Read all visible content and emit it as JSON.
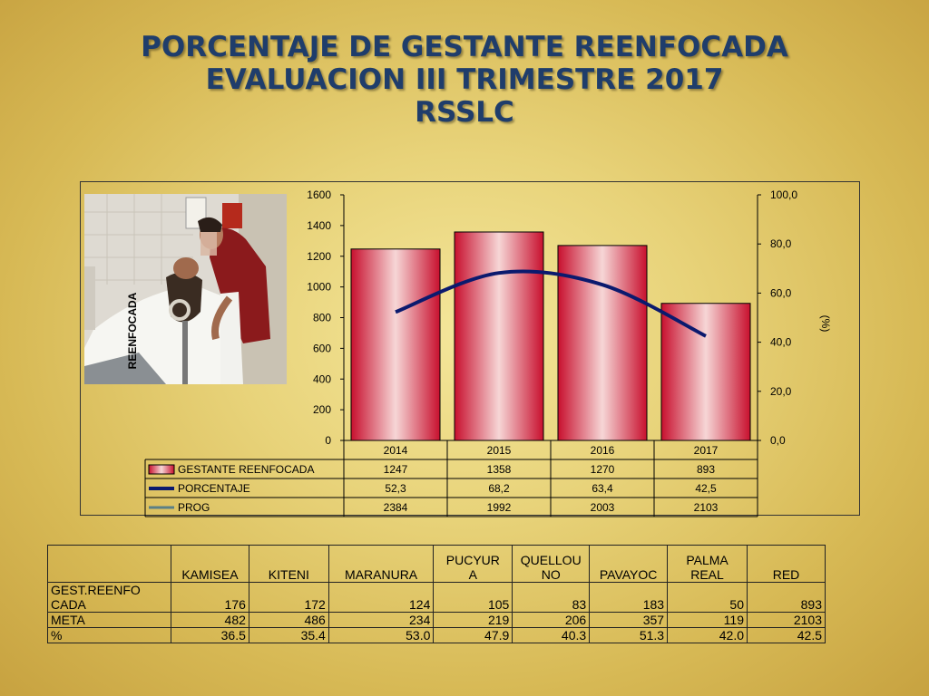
{
  "slide": {
    "title_lines": [
      "PORCENTAJE DE GESTANTE REENFOCADA",
      "EVALUACION  III TRIMESTRE 2017",
      "RSSLC"
    ]
  },
  "chart_data": {
    "type": "bar",
    "categories": [
      "2014",
      "2015",
      "2016",
      "2017"
    ],
    "series": [
      {
        "name": "GESTANTE REENFOCADA",
        "type": "bar",
        "axis": "left",
        "values": [
          1247,
          1358,
          1270,
          893
        ],
        "labels": [
          "1247",
          "1358",
          "1270",
          "893"
        ]
      },
      {
        "name": "PORCENTAJE",
        "type": "line",
        "axis": "right",
        "values": [
          52.3,
          68.2,
          63.4,
          42.5
        ],
        "labels": [
          "52,3",
          "68,2",
          "63,4",
          "42,5"
        ]
      },
      {
        "name": "PROG",
        "type": "line",
        "axis": "none",
        "values": [
          2384,
          1992,
          2003,
          2103
        ],
        "labels": [
          "2384",
          "1992",
          "2003",
          "2103"
        ]
      }
    ],
    "ylabel": "REENFOCADA",
    "y2label": "(%)",
    "ylim": [
      0,
      1600
    ],
    "y2lim": [
      0,
      100
    ],
    "yticks": [
      "0",
      "200",
      "400",
      "600",
      "800",
      "1000",
      "1200",
      "1400",
      "1600"
    ],
    "y2ticks": [
      "0,0",
      "20,0",
      "40,0",
      "60,0",
      "80,0",
      "100,0"
    ],
    "legend": "bottom-data-table",
    "colors": {
      "bar": "#c8102e",
      "bar_light": "#f6d6d6",
      "porcentaje": "#0b1a6e",
      "prog": "#5a7f86"
    }
  },
  "table": {
    "columns": [
      "",
      "KAMISEA",
      "KITENI",
      "MARANURA",
      "PUCYURA",
      "QUELLOUNO",
      "PAVAYOC",
      "PALMA REAL",
      "RED"
    ],
    "header_lines": [
      [
        ""
      ],
      [
        "KAMISEA"
      ],
      [
        "KITENI"
      ],
      [
        "MARANURA"
      ],
      [
        "PUCYUR",
        "A"
      ],
      [
        "QUELLOU",
        "NO"
      ],
      [
        "PAVAYOC"
      ],
      [
        "PALMA",
        "REAL"
      ],
      [
        "RED"
      ]
    ],
    "rows": [
      {
        "label_lines": [
          "GEST.REENFO",
          "CADA"
        ],
        "values": [
          "176",
          "172",
          "124",
          "105",
          "83",
          "183",
          "50",
          "893"
        ]
      },
      {
        "label_lines": [
          "META"
        ],
        "values": [
          "482",
          "486",
          "234",
          "219",
          "206",
          "357",
          "119",
          "2103"
        ]
      },
      {
        "label_lines": [
          "%"
        ],
        "values": [
          "36.5",
          "35.4",
          "53.0",
          "47.9",
          "40.3",
          "51.3",
          "42.0",
          "42.5"
        ]
      }
    ]
  }
}
